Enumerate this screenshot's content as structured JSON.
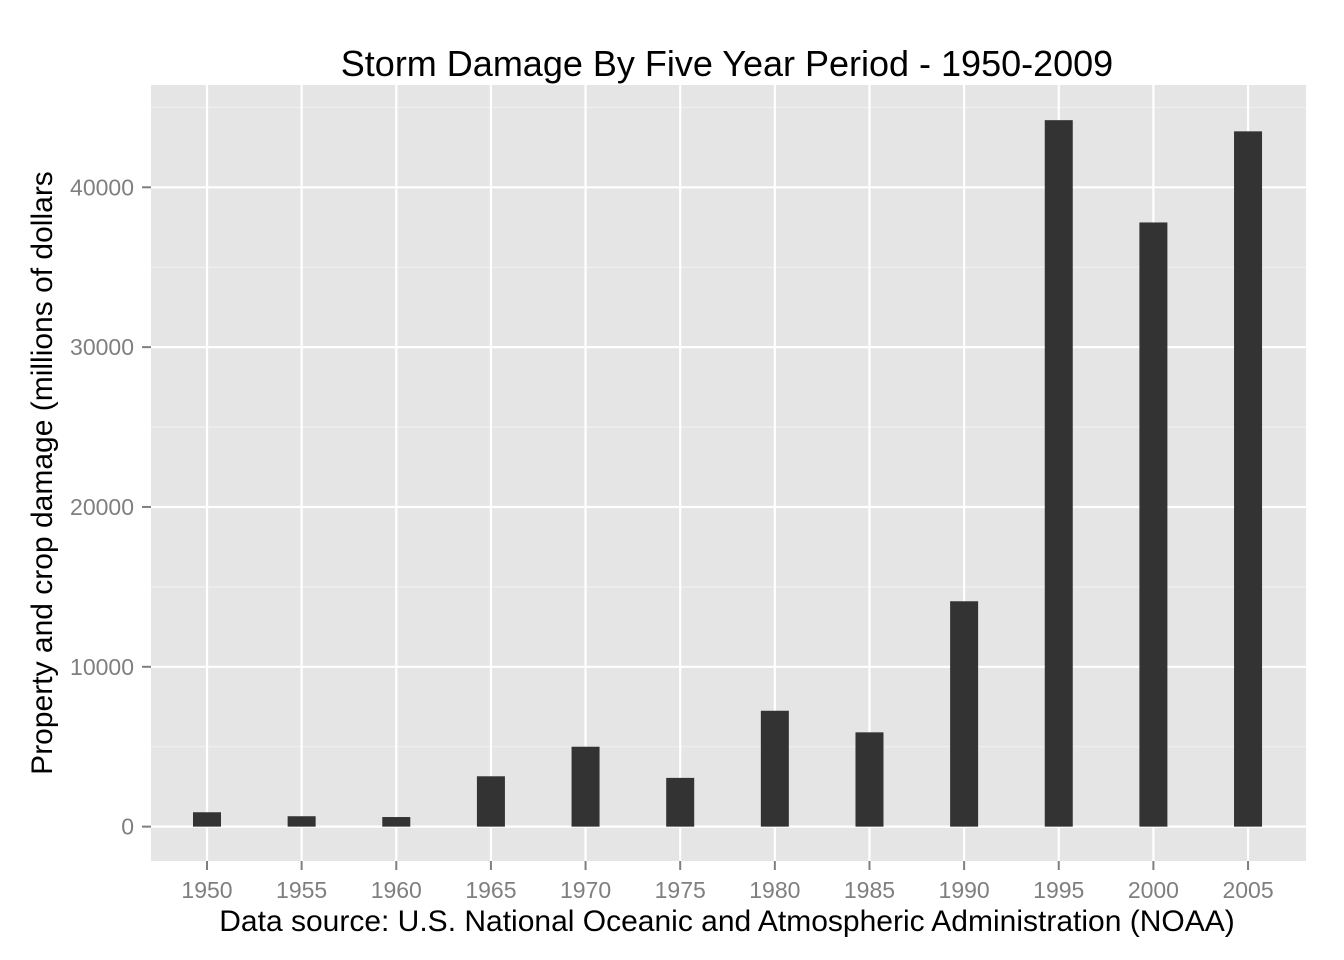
{
  "chart_data": {
    "type": "bar",
    "title": "Storm Damage By Five Year Period - 1950-2009",
    "xlabel": "Data source: U.S. National Oceanic and Atmospheric Administration (NOAA)",
    "ylabel": "Property and crop damage (millions of dollars",
    "categories": [
      "1950",
      "1955",
      "1960",
      "1965",
      "1970",
      "1975",
      "1980",
      "1985",
      "1990",
      "1995",
      "2000",
      "2005"
    ],
    "values": [
      900,
      650,
      600,
      3150,
      5000,
      3050,
      7250,
      5900,
      14100,
      44200,
      37800,
      43500
    ],
    "ylim": [
      -2150,
      46400
    ],
    "yticks": [
      0,
      10000,
      20000,
      30000,
      40000
    ],
    "ytick_labels": [
      "0",
      "10000",
      "20000",
      "30000",
      "40000"
    ],
    "grid": true,
    "legend": "none",
    "colors": {
      "panel_background": "#e5e5e5",
      "grid_major": "#ffffff",
      "grid_minor": "#f2f2f2",
      "bar_fill": "#333333",
      "tick_label": "#7f7f7f",
      "text": "#000000"
    }
  }
}
